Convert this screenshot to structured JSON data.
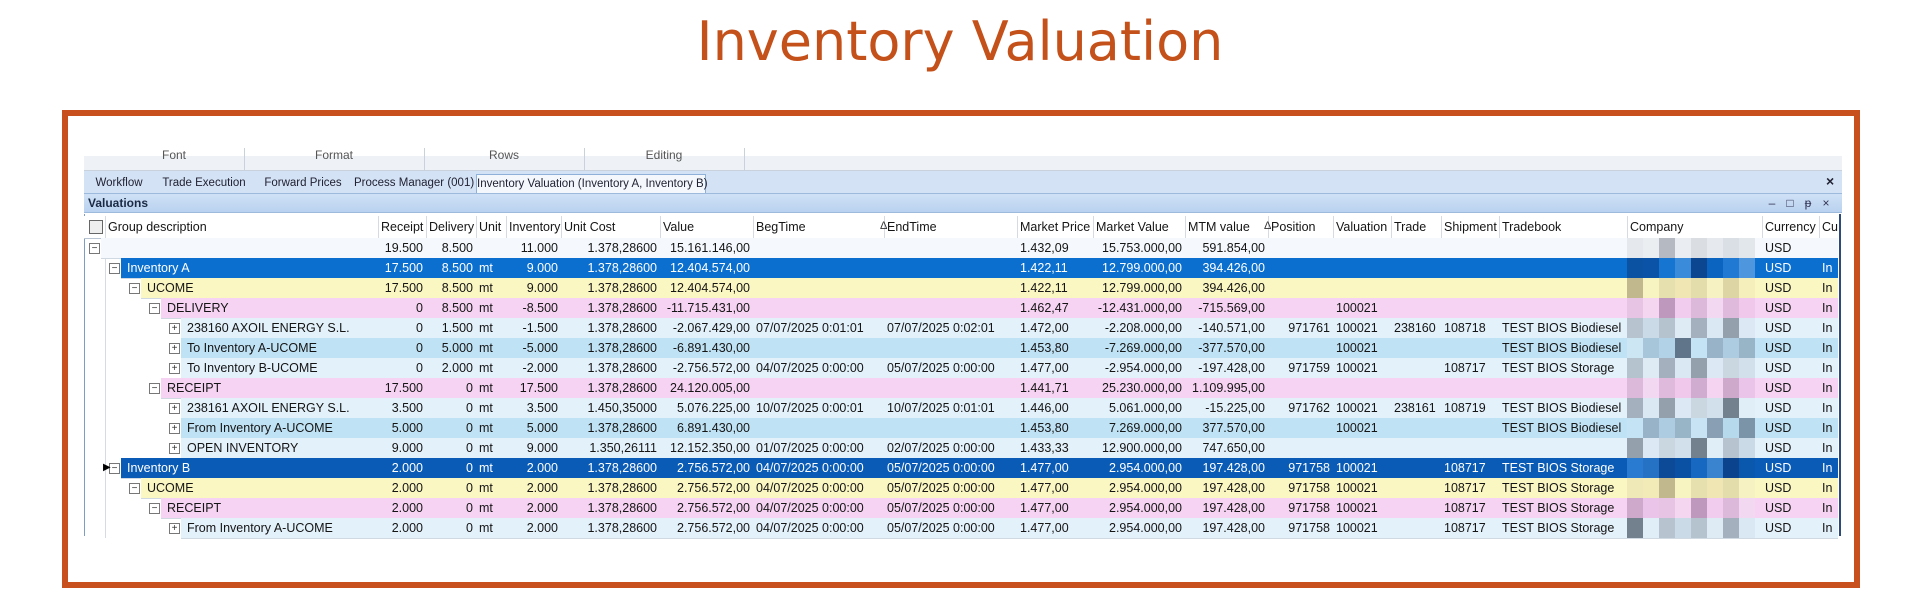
{
  "title": "Inventory Valuation",
  "ribbon": [
    "Font",
    "Format",
    "Rows",
    "Editing"
  ],
  "tabs": [
    "Workflow",
    "Trade Execution",
    "Forward Prices",
    "Process Manager (001)",
    "Inventory Valuation (Inventory A, Inventory B)"
  ],
  "panel_title": "Valuations",
  "table": {
    "columns": [
      "Group description",
      "Receipt",
      "Delivery",
      "Unit",
      "Inventory",
      "Unit Cost",
      "Value",
      "BegTime",
      "EndTime",
      "Market Price",
      "Market Value",
      "MTM value",
      "Position",
      "Valuation",
      "Trade",
      "Shipment",
      "Tradebook",
      "Company",
      "Currency",
      "Cu"
    ],
    "rows": [
      [
        null,
        "19.500",
        "8.500",
        null,
        "11.000",
        "1.378,28600",
        "15.161.146,00",
        null,
        null,
        "1.432,09",
        "15.753.000,00",
        "591.854,00",
        null,
        null,
        null,
        null,
        null,
        null,
        "USD",
        null
      ],
      [
        "Inventory A",
        "17.500",
        "8.500",
        "mt",
        "9.000",
        "1.378,28600",
        "12.404.574,00",
        null,
        null,
        "1.422,11",
        "12.799.000,00",
        "394.426,00",
        null,
        null,
        null,
        null,
        null,
        null,
        "USD",
        "In"
      ],
      [
        "UCOME",
        "17.500",
        "8.500",
        "mt",
        "9.000",
        "1.378,28600",
        "12.404.574,00",
        null,
        null,
        "1.422,11",
        "12.799.000,00",
        "394.426,00",
        null,
        null,
        null,
        null,
        null,
        null,
        "USD",
        "In"
      ],
      [
        "DELIVERY",
        "0",
        "8.500",
        "mt",
        "-8.500",
        "1.378,28600",
        "-11.715.431,00",
        null,
        null,
        "1.462,47",
        "-12.431.000,00",
        "-715.569,00",
        null,
        "100021",
        null,
        null,
        null,
        null,
        "USD",
        "In"
      ],
      [
        "238160 AXOIL ENERGY S.L.",
        "0",
        "1.500",
        "mt",
        "-1.500",
        "1.378,28600",
        "-2.067.429,00",
        "07/07/2025 0:01:01",
        "07/07/2025 0:02:01",
        "1.472,00",
        "-2.208.000,00",
        "-140.571,00",
        "971761",
        "100021",
        "238160",
        "108718",
        "TEST BIOS Biodiesel",
        null,
        "USD",
        "In"
      ],
      [
        "To Inventory A-UCOME",
        "0",
        "5.000",
        "mt",
        "-5.000",
        "1.378,28600",
        "-6.891.430,00",
        null,
        null,
        "1.453,80",
        "-7.269.000,00",
        "-377.570,00",
        null,
        "100021",
        null,
        null,
        "TEST BIOS Biodiesel",
        null,
        "USD",
        "In"
      ],
      [
        "To Inventory B-UCOME",
        "0",
        "2.000",
        "mt",
        "-2.000",
        "1.378,28600",
        "-2.756.572,00",
        "04/07/2025 0:00:00",
        "05/07/2025 0:00:00",
        "1.477,00",
        "-2.954.000,00",
        "-197.428,00",
        "971759",
        "100021",
        null,
        "108717",
        "TEST BIOS Storage",
        null,
        "USD",
        "In"
      ],
      [
        "RECEIPT",
        "17.500",
        "0",
        "mt",
        "17.500",
        "1.378,28600",
        "24.120.005,00",
        null,
        null,
        "1.441,71",
        "25.230.000,00",
        "1.109.995,00",
        null,
        null,
        null,
        null,
        null,
        null,
        "USD",
        "In"
      ],
      [
        "238161 AXOIL ENERGY S.L.",
        "3.500",
        "0",
        "mt",
        "3.500",
        "1.450,35000",
        "5.076.225,00",
        "10/07/2025 0:00:01",
        "10/07/2025 0:01:01",
        "1.446,00",
        "5.061.000,00",
        "-15.225,00",
        "971762",
        "100021",
        "238161",
        "108719",
        "TEST BIOS Biodiesel",
        null,
        "USD",
        "In"
      ],
      [
        "From Inventory A-UCOME",
        "5.000",
        "0",
        "mt",
        "5.000",
        "1.378,28600",
        "6.891.430,00",
        null,
        null,
        "1.453,80",
        "7.269.000,00",
        "377.570,00",
        null,
        "100021",
        null,
        null,
        "TEST BIOS Biodiesel",
        null,
        "USD",
        "In"
      ],
      [
        "OPEN INVENTORY",
        "9.000",
        "0",
        "mt",
        "9.000",
        "1.350,26111",
        "12.152.350,00",
        "01/07/2025 0:00:00",
        "02/07/2025 0:00:00",
        "1.433,33",
        "12.900.000,00",
        "747.650,00",
        null,
        null,
        null,
        null,
        null,
        null,
        "USD",
        "In"
      ],
      [
        "Inventory B",
        "2.000",
        "0",
        "mt",
        "2.000",
        "1.378,28600",
        "2.756.572,00",
        "04/07/2025 0:00:00",
        "05/07/2025 0:00:00",
        "1.477,00",
        "2.954.000,00",
        "197.428,00",
        "971758",
        "100021",
        null,
        "108717",
        "TEST BIOS Storage",
        null,
        "USD",
        "In"
      ],
      [
        "UCOME",
        "2.000",
        "0",
        "mt",
        "2.000",
        "1.378,28600",
        "2.756.572,00",
        "04/07/2025 0:00:00",
        "05/07/2025 0:00:00",
        "1.477,00",
        "2.954.000,00",
        "197.428,00",
        "971758",
        "100021",
        null,
        "108717",
        "TEST BIOS Storage",
        null,
        "USD",
        "In"
      ],
      [
        "RECEIPT",
        "2.000",
        "0",
        "mt",
        "2.000",
        "1.378,28600",
        "2.756.572,00",
        "04/07/2025 0:00:00",
        "05/07/2025 0:00:00",
        "1.477,00",
        "2.954.000,00",
        "197.428,00",
        "971758",
        "100021",
        null,
        "108717",
        "TEST BIOS Storage",
        null,
        "USD",
        "In"
      ],
      [
        "From Inventory A-UCOME",
        "2.000",
        "0",
        "mt",
        "2.000",
        "1.378,28600",
        "2.756.572,00",
        "04/07/2025 0:00:00",
        "05/07/2025 0:00:00",
        "1.477,00",
        "2.954.000,00",
        "197.428,00",
        "971758",
        "100021",
        null,
        "108717",
        "TEST BIOS Storage",
        null,
        "USD",
        "In"
      ]
    ]
  }
}
